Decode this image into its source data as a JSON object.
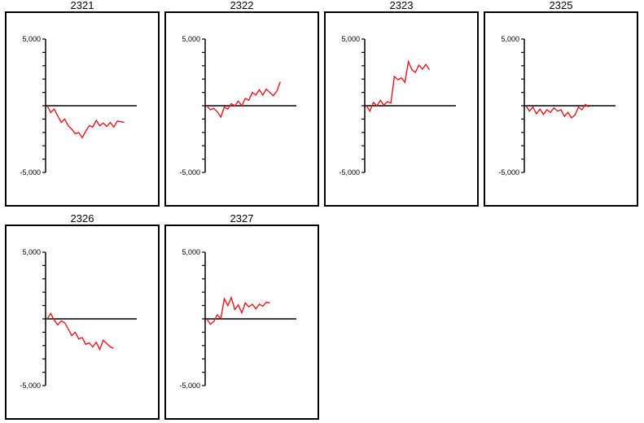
{
  "colors": {
    "series": "#e41a1c",
    "axis": "#000000",
    "background": "#ffffff"
  },
  "chart_data": [
    {
      "type": "line",
      "title": "2321",
      "ylim": [
        -5000,
        5000
      ],
      "y_tick_labels": [
        "5,000",
        "-5,000"
      ],
      "values": [
        0,
        -500,
        -250,
        -750,
        -1250,
        -1000,
        -1500,
        -1750,
        -2100,
        -2000,
        -2400,
        -1900,
        -1500,
        -1600,
        -1100,
        -1500,
        -1300,
        -1550,
        -1250,
        -1600,
        -1150,
        -1200,
        -1250
      ]
    },
    {
      "type": "line",
      "title": "2322",
      "ylim": [
        -5000,
        5000
      ],
      "y_tick_labels": [
        "5,000",
        "-5,000"
      ],
      "values": [
        0,
        -300,
        -200,
        -450,
        -850,
        -100,
        -250,
        150,
        0,
        350,
        0,
        550,
        400,
        1000,
        800,
        1200,
        800,
        1250,
        1000,
        750,
        1100,
        1800
      ]
    },
    {
      "type": "line",
      "title": "2323",
      "ylim": [
        -5000,
        5000
      ],
      "y_tick_labels": [
        "5,000",
        "-5,000"
      ],
      "values": [
        0,
        -400,
        250,
        0,
        400,
        50,
        300,
        200,
        2200,
        1950,
        2100,
        1750,
        3300,
        2700,
        2500,
        3050,
        2750,
        3100,
        2700
      ]
    },
    {
      "type": "line",
      "title": "2325",
      "ylim": [
        -5000,
        5000
      ],
      "y_tick_labels": [
        "5,000",
        "-5,000"
      ],
      "values": [
        0,
        -400,
        -100,
        -600,
        -250,
        -650,
        -300,
        -500,
        -150,
        -400,
        -300,
        -800,
        -500,
        -900,
        -700,
        -100,
        -300,
        100,
        -100
      ]
    },
    {
      "type": "line",
      "title": "2326",
      "ylim": [
        -5000,
        5000
      ],
      "y_tick_labels": [
        "5,000",
        "-5,000"
      ],
      "values": [
        0,
        400,
        -100,
        -450,
        -150,
        -300,
        -750,
        -1250,
        -1000,
        -1500,
        -1400,
        -1900,
        -1800,
        -2100,
        -1750,
        -2300,
        -1600,
        -1850,
        -2100,
        -2200
      ]
    },
    {
      "type": "line",
      "title": "2327",
      "ylim": [
        -5000,
        5000
      ],
      "y_tick_labels": [
        "5,000",
        "-5,000"
      ],
      "values": [
        0,
        -400,
        -200,
        300,
        0,
        1500,
        1000,
        1600,
        700,
        1050,
        450,
        1200,
        900,
        1100,
        750,
        1100,
        950,
        1250,
        1200
      ]
    }
  ]
}
